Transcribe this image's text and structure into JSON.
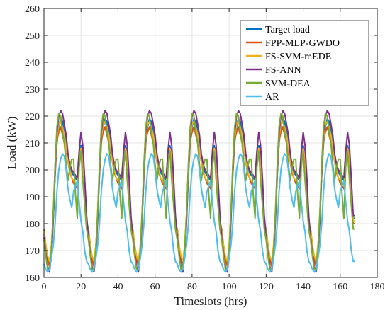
{
  "chart_data": {
    "type": "line",
    "xlabel": "Timeslots (hrs)",
    "ylabel": "Load (kW)",
    "xlim": [
      0,
      180
    ],
    "ylim": [
      160,
      260
    ],
    "xticks": [
      0,
      20,
      40,
      60,
      80,
      100,
      120,
      140,
      160,
      180
    ],
    "yticks": [
      160,
      170,
      180,
      190,
      200,
      210,
      220,
      230,
      240,
      250,
      260
    ],
    "grid": true,
    "legend_position": "top-right",
    "period_hours": 24,
    "days": 7,
    "series": [
      {
        "name": "Target load",
        "color": "#0072BD",
        "x": [
          0,
          1,
          2,
          3,
          4,
          5,
          6,
          7,
          8,
          9,
          10,
          11,
          12,
          13,
          14,
          15,
          16,
          17,
          18,
          19,
          20,
          21,
          22,
          23
        ],
        "y": [
          176,
          171,
          166,
          165,
          170,
          182,
          198,
          210,
          216,
          219,
          218,
          214,
          211,
          205,
          201,
          199,
          198,
          197,
          196,
          204,
          209,
          206,
          196,
          182
        ]
      },
      {
        "name": "FPP-MLP-GWDO",
        "color": "#D95319",
        "x": [
          0,
          1,
          2,
          3,
          4,
          5,
          6,
          7,
          8,
          9,
          10,
          11,
          12,
          13,
          14,
          15,
          16,
          17,
          18,
          19,
          20,
          21,
          22,
          23
        ],
        "y": [
          178,
          172,
          167,
          164,
          171,
          183,
          199,
          211,
          214,
          216,
          213,
          210,
          207,
          203,
          199,
          197,
          195,
          194,
          193,
          202,
          207,
          204,
          194,
          180
        ]
      },
      {
        "name": "FS-SVM-mEDE",
        "color": "#EDB120",
        "x": [
          0,
          1,
          2,
          3,
          4,
          5,
          6,
          7,
          8,
          9,
          10,
          11,
          12,
          13,
          14,
          15,
          16,
          17,
          18,
          19,
          20,
          21,
          22,
          23
        ],
        "y": [
          177,
          172,
          168,
          166,
          172,
          184,
          200,
          212,
          217,
          218,
          216,
          213,
          208,
          203,
          200,
          197,
          196,
          195,
          194,
          203,
          208,
          205,
          195,
          181
        ]
      },
      {
        "name": "FS-ANN",
        "color": "#7E2F8E",
        "x": [
          0,
          1,
          2,
          3,
          4,
          5,
          6,
          7,
          8,
          9,
          10,
          11,
          12,
          13,
          14,
          15,
          16,
          17,
          18,
          19,
          20,
          21,
          22,
          23
        ],
        "y": [
          175,
          169,
          164,
          162,
          168,
          181,
          201,
          214,
          220,
          222,
          221,
          217,
          213,
          206,
          202,
          200,
          199,
          198,
          197,
          207,
          214,
          209,
          197,
          183
        ]
      },
      {
        "name": "SVM-DEA",
        "color": "#77AC30",
        "x": [
          0,
          1,
          2,
          3,
          4,
          5,
          6,
          7,
          8,
          9,
          10,
          11,
          12,
          13,
          14,
          15,
          16,
          17,
          18,
          19,
          20,
          21,
          22,
          23
        ],
        "y": [
          174,
          168,
          163,
          163,
          170,
          184,
          202,
          216,
          221,
          220,
          214,
          210,
          202,
          196,
          201,
          204,
          204,
          191,
          182,
          201,
          207,
          196,
          187,
          178
        ]
      },
      {
        "name": "AR",
        "color": "#4DBEEE",
        "x": [
          0,
          1,
          2,
          3,
          4,
          5,
          6,
          7,
          8,
          9,
          10,
          11,
          12,
          13,
          14,
          15,
          16,
          17,
          18,
          19,
          20,
          21,
          22,
          23
        ],
        "y": [
          165,
          163,
          162,
          163,
          167,
          172,
          180,
          192,
          200,
          204,
          206,
          205,
          200,
          193,
          189,
          186,
          192,
          194,
          196,
          188,
          181,
          177,
          170,
          166
        ]
      }
    ]
  }
}
